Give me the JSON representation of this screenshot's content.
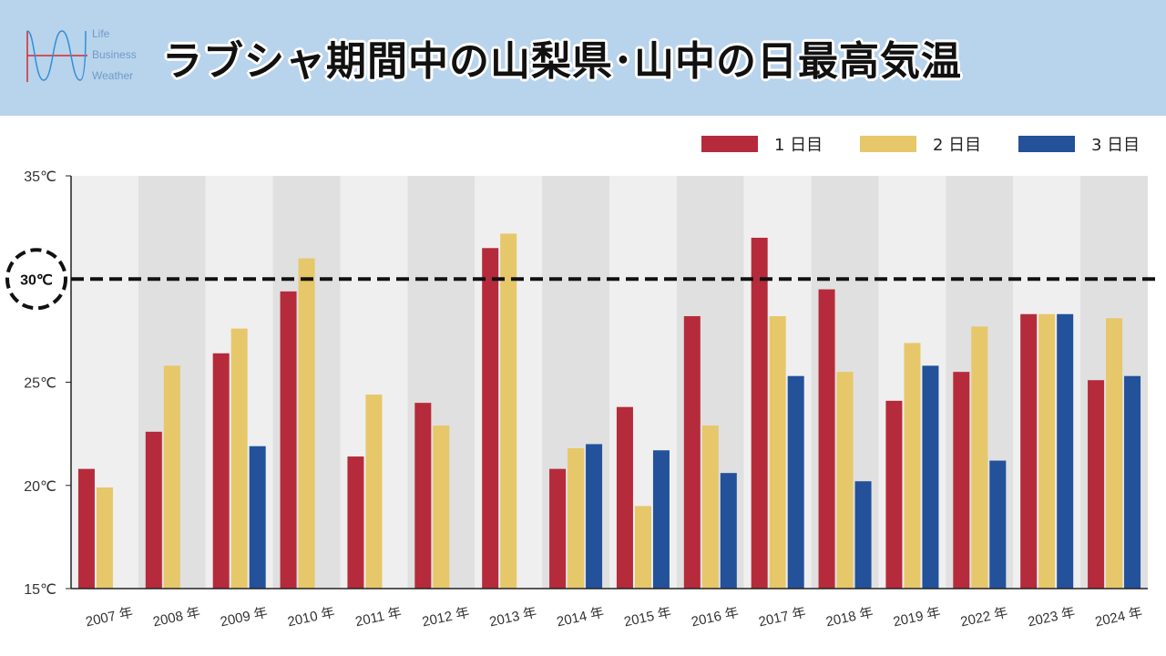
{
  "header": {
    "logo_lines": [
      "Life",
      "Business",
      "Weather"
    ],
    "title": "ラブシャ期間中の山梨県･山中の日最高気温"
  },
  "colors": {
    "header_bg": "#b8d3ec",
    "day1": "#b52b3b",
    "day2": "#e6c76a",
    "day3": "#23519a",
    "band_light": "#efefef",
    "band_dark": "#e0e0e0"
  },
  "chart_data": {
    "type": "bar",
    "categories": [
      "2007 年",
      "2008 年",
      "2009 年",
      "2010 年",
      "2011 年",
      "2012 年",
      "2013 年",
      "2014 年",
      "2015 年",
      "2016 年",
      "2017 年",
      "2018 年",
      "2019 年",
      "2022 年",
      "2023 年",
      "2024 年"
    ],
    "series": [
      {
        "name": "1 日目",
        "color": "#b52b3b",
        "values": [
          20.8,
          22.6,
          26.4,
          29.4,
          21.4,
          24.0,
          31.5,
          20.8,
          23.8,
          28.2,
          32.0,
          29.5,
          24.1,
          25.5,
          28.3,
          25.1
        ]
      },
      {
        "name": "2 日目",
        "color": "#e6c76a",
        "values": [
          19.9,
          25.8,
          27.6,
          31.0,
          24.4,
          22.9,
          32.2,
          21.8,
          19.0,
          22.9,
          28.2,
          25.5,
          26.9,
          27.7,
          28.3,
          28.1
        ]
      },
      {
        "name": "3 日目",
        "color": "#23519a",
        "values": [
          null,
          null,
          21.9,
          null,
          null,
          null,
          null,
          22.0,
          21.7,
          20.6,
          25.3,
          20.2,
          25.8,
          21.2,
          28.3,
          25.3
        ]
      }
    ],
    "yticks": [
      "15℃",
      "20℃",
      "25℃",
      "35℃"
    ],
    "ylim": [
      15,
      35
    ],
    "reference_line": {
      "value": 30,
      "label": "30℃"
    },
    "legend_position": "top-right",
    "xlabel": "",
    "ylabel": ""
  }
}
